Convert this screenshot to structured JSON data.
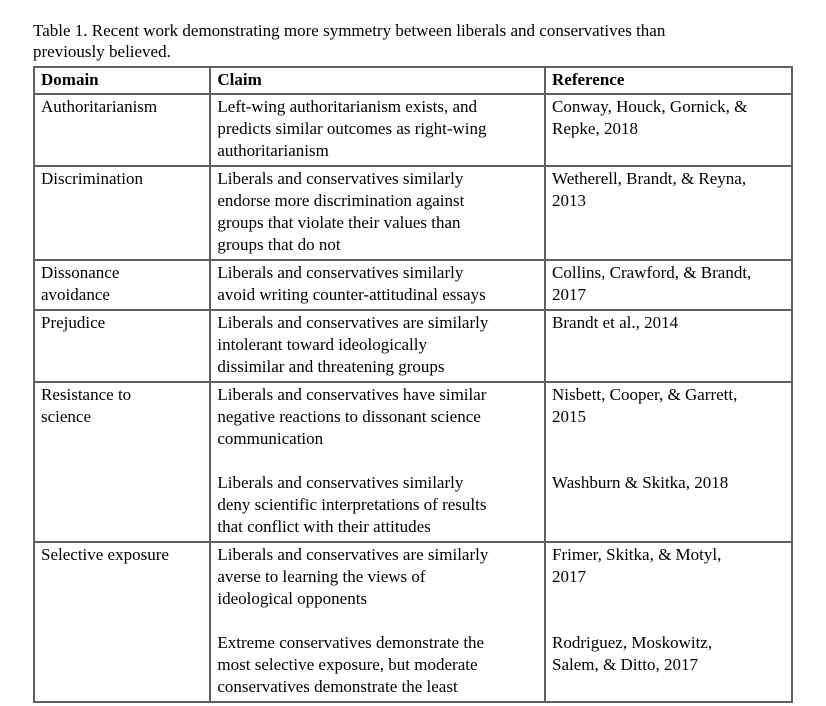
{
  "caption": "Table 1. Recent work demonstrating more symmetry between liberals and conservatives than\npreviously believed.",
  "table": {
    "headers": [
      "Domain",
      "Claim",
      "Reference"
    ],
    "rows": [
      {
        "domain": "Authoritarianism",
        "claims": [
          "Left-wing authoritarianism exists, and\npredicts similar outcomes as right-wing\nauthoritarianism"
        ],
        "references": [
          "Conway, Houck, Gornick, &\nRepke, 2018"
        ]
      },
      {
        "domain": "Discrimination",
        "claims": [
          "Liberals and conservatives similarly\nendorse more discrimination against\ngroups that violate their values than\ngroups that do not"
        ],
        "references": [
          "Wetherell, Brandt, & Reyna,\n2013"
        ]
      },
      {
        "domain": "Dissonance\navoidance",
        "claims": [
          "Liberals and conservatives similarly\navoid writing counter-attitudinal essays"
        ],
        "references": [
          "Collins, Crawford, & Brandt,\n2017"
        ]
      },
      {
        "domain": "Prejudice",
        "claims": [
          "Liberals and conservatives are similarly\nintolerant toward ideologically\ndissimilar and threatening groups"
        ],
        "references": [
          "Brandt et al., 2014"
        ]
      },
      {
        "domain": "Resistance to\nscience",
        "claims": [
          "Liberals and conservatives have similar\nnegative reactions to dissonant science\ncommunication",
          "Liberals and conservatives similarly\ndeny scientific interpretations of results\nthat conflict with their attitudes"
        ],
        "references": [
          "Nisbett, Cooper, & Garrett,\n2015",
          "Washburn & Skitka, 2018"
        ]
      },
      {
        "domain": "Selective exposure",
        "claims": [
          "Liberals and conservatives are similarly\naverse to learning the views of\nideological opponents",
          "Extreme conservatives demonstrate the\nmost selective exposure, but moderate\nconservatives demonstrate the least"
        ],
        "references": [
          "Frimer, Skitka, & Motyl,\n2017",
          "Rodriguez, Moskowitz,\nSalem, & Ditto, 2017"
        ]
      }
    ]
  }
}
